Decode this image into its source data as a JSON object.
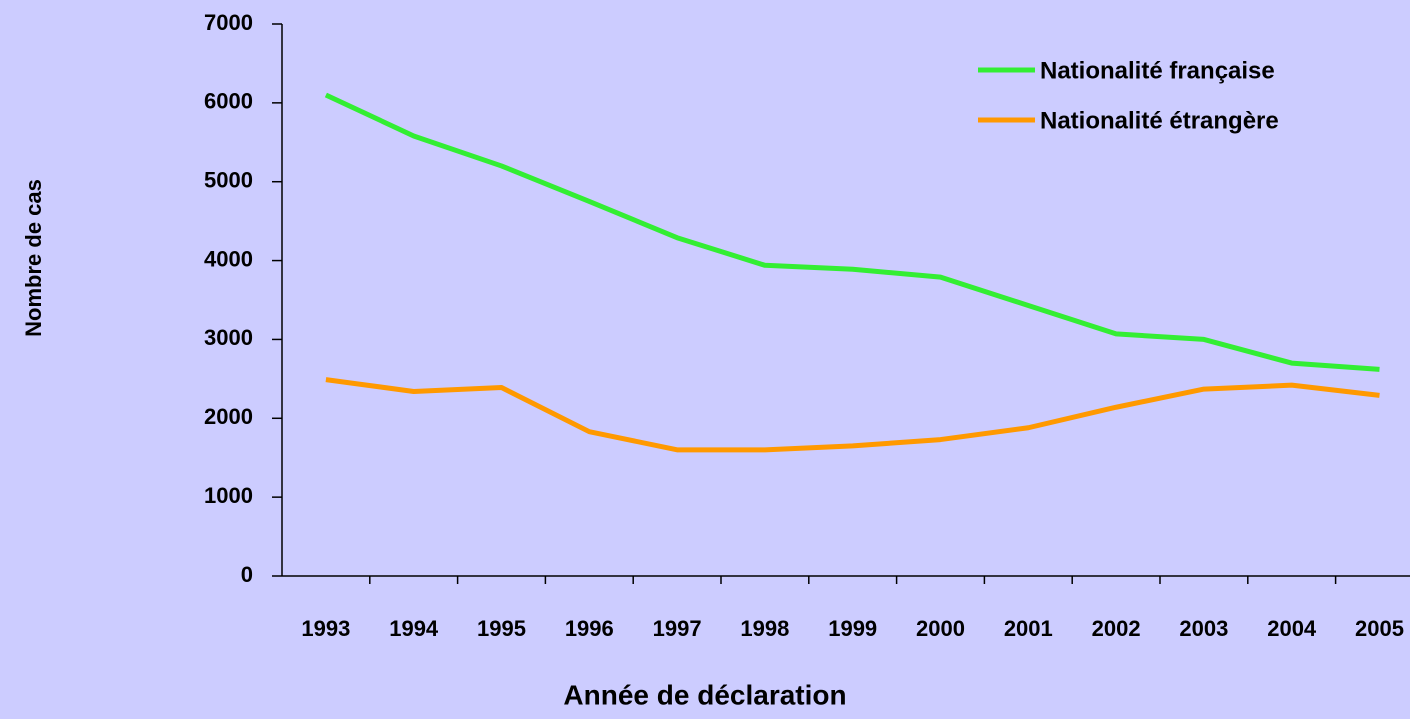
{
  "chart_data": {
    "type": "line",
    "x_label": "Année de déclaration",
    "y_label": "Nombre de cas",
    "categories": [
      "1993",
      "1994",
      "1995",
      "1996",
      "1997",
      "1998",
      "1999",
      "2000",
      "2001",
      "2002",
      "2003",
      "2004",
      "2005"
    ],
    "series": [
      {
        "name": "Nationalité française",
        "color": "#33ee33",
        "values": [
          6100,
          5580,
          5200,
          4750,
          4290,
          3940,
          3890,
          3790,
          3430,
          3070,
          3000,
          2700,
          2620
        ]
      },
      {
        "name": "Nationalité étrangère",
        "color": "#ff9900",
        "values": [
          2490,
          2340,
          2390,
          1830,
          1600,
          1600,
          1650,
          1730,
          1880,
          2140,
          2370,
          2420,
          2290
        ]
      }
    ],
    "ylim": [
      0,
      7000
    ],
    "yticks": [
      0,
      1000,
      2000,
      3000,
      4000,
      5000,
      6000,
      7000
    ],
    "legend": "top-right",
    "background": "#ccccff"
  }
}
